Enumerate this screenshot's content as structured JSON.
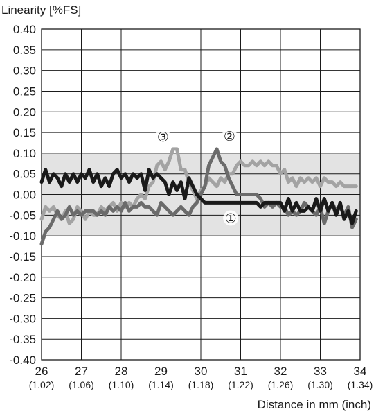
{
  "chart_data": {
    "type": "line",
    "ylabel": "Linearity [%FS]",
    "xlabel": "Distance in mm (inch)",
    "xlim": [
      26,
      34
    ],
    "ylim": [
      -0.4,
      0.4
    ],
    "grid": true,
    "tolerance_band": [
      -0.1,
      0.1
    ],
    "x_ticks": [
      {
        "main": "26",
        "sub": "(1.02)"
      },
      {
        "main": "27",
        "sub": "(1.06)"
      },
      {
        "main": "28",
        "sub": "(1.10)"
      },
      {
        "main": "29",
        "sub": "(1.14)"
      },
      {
        "main": "30",
        "sub": "(1.18)"
      },
      {
        "main": "31",
        "sub": "(1.22)"
      },
      {
        "main": "32",
        "sub": "(1.26)"
      },
      {
        "main": "33",
        "sub": "(1.30)"
      },
      {
        "main": "34",
        "sub": "(1.34)"
      }
    ],
    "y_ticks": [
      "0.40",
      "0.35",
      "0.30",
      "0.25",
      "0.20",
      "0.15",
      "0.10",
      "0.05",
      "0.00",
      "-0.05",
      "-0.10",
      "-0.15",
      "-0.20",
      "-0.25",
      "-0.30",
      "-0.35",
      "-0.40"
    ],
    "series": [
      {
        "name": "①",
        "color": "#1a1a1a",
        "points": [
          [
            26.0,
            0.03
          ],
          [
            26.1,
            0.06
          ],
          [
            26.2,
            0.03
          ],
          [
            26.3,
            0.05
          ],
          [
            26.4,
            0.04
          ],
          [
            26.5,
            0.02
          ],
          [
            26.6,
            0.05
          ],
          [
            26.7,
            0.03
          ],
          [
            26.8,
            0.05
          ],
          [
            26.9,
            0.03
          ],
          [
            27.0,
            0.05
          ],
          [
            27.1,
            0.04
          ],
          [
            27.2,
            0.06
          ],
          [
            27.3,
            0.03
          ],
          [
            27.4,
            0.05
          ],
          [
            27.5,
            0.02
          ],
          [
            27.6,
            0.04
          ],
          [
            27.7,
            0.02
          ],
          [
            27.8,
            0.05
          ],
          [
            27.9,
            0.06
          ],
          [
            28.0,
            0.04
          ],
          [
            28.1,
            0.05
          ],
          [
            28.2,
            0.03
          ],
          [
            28.3,
            0.05
          ],
          [
            28.4,
            0.04
          ],
          [
            28.5,
            0.05
          ],
          [
            28.6,
            0.01
          ],
          [
            28.7,
            0.06
          ],
          [
            28.8,
            0.04
          ],
          [
            28.9,
            0.05
          ],
          [
            29.0,
            0.04
          ],
          [
            29.1,
            0.03
          ],
          [
            29.2,
            0.0
          ],
          [
            29.3,
            0.03
          ],
          [
            29.4,
            0.01
          ],
          [
            29.5,
            0.03
          ],
          [
            29.6,
            -0.01
          ],
          [
            29.7,
            0.04
          ],
          [
            29.8,
            0.02
          ],
          [
            29.9,
            0.0
          ],
          [
            30.0,
            -0.01
          ],
          [
            30.1,
            -0.02
          ],
          [
            30.3,
            -0.02
          ],
          [
            30.6,
            -0.02
          ],
          [
            30.9,
            -0.02
          ],
          [
            31.2,
            -0.02
          ],
          [
            31.4,
            -0.02
          ],
          [
            31.5,
            -0.03
          ],
          [
            31.6,
            -0.02
          ],
          [
            31.8,
            -0.02
          ],
          [
            32.0,
            -0.02
          ],
          [
            32.1,
            -0.04
          ],
          [
            32.2,
            -0.01
          ],
          [
            32.3,
            -0.04
          ],
          [
            32.4,
            -0.02
          ],
          [
            32.5,
            -0.04
          ],
          [
            32.6,
            -0.04
          ],
          [
            32.7,
            -0.03
          ],
          [
            32.8,
            -0.04
          ],
          [
            32.9,
            -0.01
          ],
          [
            33.0,
            -0.04
          ],
          [
            33.1,
            -0.01
          ],
          [
            33.2,
            -0.04
          ],
          [
            33.3,
            -0.02
          ],
          [
            33.4,
            -0.05
          ],
          [
            33.5,
            -0.02
          ],
          [
            33.6,
            -0.06
          ],
          [
            33.7,
            -0.04
          ],
          [
            33.8,
            -0.07
          ],
          [
            33.9,
            -0.04
          ]
        ]
      },
      {
        "name": "②",
        "color": "#6b6b6b",
        "points": [
          [
            26.0,
            -0.12
          ],
          [
            26.1,
            -0.09
          ],
          [
            26.2,
            -0.08
          ],
          [
            26.3,
            -0.06
          ],
          [
            26.4,
            -0.04
          ],
          [
            26.5,
            -0.06
          ],
          [
            26.6,
            -0.05
          ],
          [
            26.7,
            -0.03
          ],
          [
            26.8,
            -0.05
          ],
          [
            26.9,
            -0.04
          ],
          [
            27.0,
            -0.05
          ],
          [
            27.1,
            -0.04
          ],
          [
            27.2,
            -0.04
          ],
          [
            27.3,
            -0.04
          ],
          [
            27.4,
            -0.05
          ],
          [
            27.5,
            -0.04
          ],
          [
            27.6,
            -0.05
          ],
          [
            27.7,
            -0.03
          ],
          [
            27.8,
            -0.04
          ],
          [
            27.9,
            -0.03
          ],
          [
            28.0,
            -0.04
          ],
          [
            28.1,
            -0.02
          ],
          [
            28.2,
            -0.04
          ],
          [
            28.3,
            -0.03
          ],
          [
            28.4,
            -0.03
          ],
          [
            28.5,
            -0.02
          ],
          [
            28.6,
            -0.03
          ],
          [
            28.7,
            -0.03
          ],
          [
            28.8,
            -0.04
          ],
          [
            28.9,
            -0.05
          ],
          [
            29.0,
            -0.02
          ],
          [
            29.1,
            -0.03
          ],
          [
            29.2,
            -0.04
          ],
          [
            29.3,
            -0.05
          ],
          [
            29.4,
            -0.04
          ],
          [
            29.5,
            -0.03
          ],
          [
            29.6,
            -0.04
          ],
          [
            29.7,
            -0.05
          ],
          [
            29.8,
            -0.03
          ],
          [
            29.9,
            -0.02
          ],
          [
            30.0,
            0.0
          ],
          [
            30.1,
            0.02
          ],
          [
            30.2,
            0.07
          ],
          [
            30.3,
            0.09
          ],
          [
            30.4,
            0.11
          ],
          [
            30.5,
            0.08
          ],
          [
            30.6,
            0.07
          ],
          [
            30.7,
            0.04
          ],
          [
            30.8,
            0.02
          ],
          [
            30.9,
            0.0
          ],
          [
            31.0,
            0.0
          ],
          [
            31.2,
            0.0
          ],
          [
            31.4,
            0.0
          ],
          [
            31.5,
            -0.01
          ],
          [
            31.6,
            -0.03
          ],
          [
            31.7,
            -0.02
          ],
          [
            31.8,
            -0.03
          ],
          [
            31.9,
            -0.02
          ],
          [
            32.0,
            -0.03
          ],
          [
            32.1,
            -0.03
          ],
          [
            32.2,
            -0.05
          ],
          [
            32.3,
            -0.04
          ],
          [
            32.4,
            -0.05
          ],
          [
            32.5,
            -0.04
          ],
          [
            32.6,
            -0.02
          ],
          [
            32.7,
            -0.03
          ],
          [
            32.8,
            -0.04
          ],
          [
            32.9,
            -0.05
          ],
          [
            33.0,
            -0.03
          ],
          [
            33.1,
            -0.07
          ],
          [
            33.2,
            -0.04
          ],
          [
            33.3,
            -0.02
          ],
          [
            33.4,
            -0.04
          ],
          [
            33.5,
            -0.03
          ],
          [
            33.6,
            -0.05
          ],
          [
            33.7,
            -0.03
          ],
          [
            33.8,
            -0.08
          ],
          [
            33.9,
            -0.06
          ]
        ]
      },
      {
        "name": "③",
        "color": "#a3a3a3",
        "points": [
          [
            26.0,
            -0.06
          ],
          [
            26.1,
            -0.03
          ],
          [
            26.2,
            -0.04
          ],
          [
            26.3,
            -0.03
          ],
          [
            26.4,
            -0.05
          ],
          [
            26.5,
            -0.06
          ],
          [
            26.6,
            -0.04
          ],
          [
            26.7,
            -0.07
          ],
          [
            26.8,
            -0.06
          ],
          [
            26.9,
            -0.03
          ],
          [
            27.0,
            -0.04
          ],
          [
            27.1,
            -0.06
          ],
          [
            27.2,
            -0.04
          ],
          [
            27.3,
            -0.05
          ],
          [
            27.4,
            -0.05
          ],
          [
            27.5,
            -0.03
          ],
          [
            27.6,
            -0.04
          ],
          [
            27.7,
            -0.03
          ],
          [
            27.8,
            -0.02
          ],
          [
            27.9,
            -0.04
          ],
          [
            28.0,
            -0.02
          ],
          [
            28.1,
            -0.03
          ],
          [
            28.2,
            -0.02
          ],
          [
            28.3,
            -0.03
          ],
          [
            28.4,
            -0.01
          ],
          [
            28.5,
            0.0
          ],
          [
            28.6,
            -0.01
          ],
          [
            28.7,
            0.02
          ],
          [
            28.8,
            0.03
          ],
          [
            28.9,
            0.07
          ],
          [
            29.0,
            0.08
          ],
          [
            29.1,
            0.06
          ],
          [
            29.2,
            0.08
          ],
          [
            29.3,
            0.11
          ],
          [
            29.4,
            0.11
          ],
          [
            29.5,
            0.06
          ],
          [
            29.6,
            0.06
          ],
          [
            29.7,
            0.03
          ],
          [
            29.8,
            0.01
          ],
          [
            29.9,
            -0.01
          ],
          [
            30.0,
            0.01
          ],
          [
            30.1,
            0.02
          ],
          [
            30.2,
            0.04
          ],
          [
            30.3,
            0.03
          ],
          [
            30.4,
            0.02
          ],
          [
            30.5,
            0.04
          ],
          [
            30.6,
            0.03
          ],
          [
            30.7,
            0.05
          ],
          [
            30.8,
            0.05
          ],
          [
            30.9,
            0.07
          ],
          [
            31.0,
            0.08
          ],
          [
            31.1,
            0.07
          ],
          [
            31.2,
            0.07
          ],
          [
            31.3,
            0.08
          ],
          [
            31.4,
            0.07
          ],
          [
            31.5,
            0.08
          ],
          [
            31.6,
            0.07
          ],
          [
            31.7,
            0.08
          ],
          [
            31.8,
            0.07
          ],
          [
            31.9,
            0.07
          ],
          [
            32.0,
            0.05
          ],
          [
            32.1,
            0.06
          ],
          [
            32.2,
            0.03
          ],
          [
            32.3,
            0.04
          ],
          [
            32.4,
            0.02
          ],
          [
            32.5,
            0.04
          ],
          [
            32.6,
            0.03
          ],
          [
            32.7,
            0.04
          ],
          [
            32.8,
            0.03
          ],
          [
            32.9,
            0.04
          ],
          [
            33.0,
            0.02
          ],
          [
            33.1,
            0.04
          ],
          [
            33.2,
            0.03
          ],
          [
            33.3,
            0.03
          ],
          [
            33.4,
            0.02
          ],
          [
            33.5,
            0.03
          ],
          [
            33.6,
            0.02
          ],
          [
            33.7,
            0.02
          ],
          [
            33.8,
            0.02
          ],
          [
            33.9,
            0.02
          ]
        ]
      }
    ],
    "annotations": [
      {
        "label": "①",
        "x": 30.75,
        "y": -0.057
      },
      {
        "label": "②",
        "x": 30.72,
        "y": 0.142
      },
      {
        "label": "③",
        "x": 29.05,
        "y": 0.14
      }
    ]
  }
}
